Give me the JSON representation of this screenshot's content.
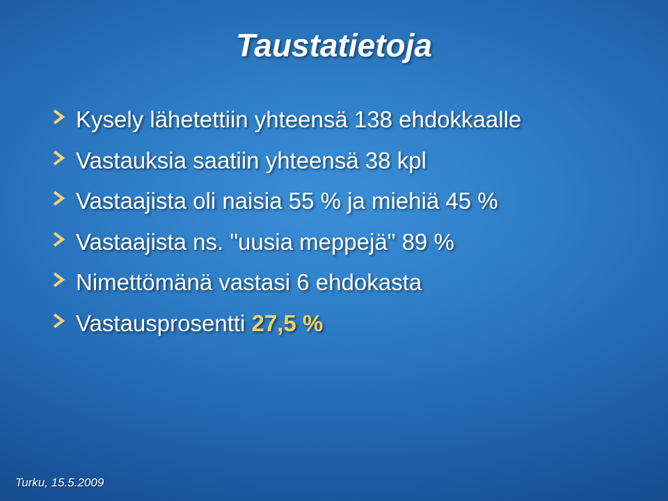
{
  "title": "Taustatietoja",
  "bullets": [
    {
      "prefix": "Kysely lähetettiin yhteensä 138 ehdokkaalle",
      "highlight": "",
      "suffix": ""
    },
    {
      "prefix": "Vastauksia saatiin yhteensä 38 kpl",
      "highlight": "",
      "suffix": ""
    },
    {
      "prefix": "Vastaajista oli naisia 55 % ja miehiä 45 %",
      "highlight": "",
      "suffix": ""
    },
    {
      "prefix": "Vastaajista ns. \"uusia meppejä\" 89 %",
      "highlight": "",
      "suffix": ""
    },
    {
      "prefix": "Nimettömänä vastasi 6 ehdokasta",
      "highlight": "",
      "suffix": ""
    },
    {
      "prefix": "Vastausprosentti ",
      "highlight": "27,5 %",
      "suffix": ""
    }
  ],
  "footer": "Turku, 15.5.2009",
  "style": {
    "bullet_marker_color": "#f2d277",
    "highlight_color": "#f2cf5f",
    "text_color": "#ffffff",
    "title_fontsize": 46,
    "bullet_fontsize": 33,
    "footer_fontsize": 17,
    "background_gradient": [
      "#3a8ed8",
      "#2f7fc8",
      "#2268b2",
      "#174f92",
      "#0d3a72"
    ]
  }
}
